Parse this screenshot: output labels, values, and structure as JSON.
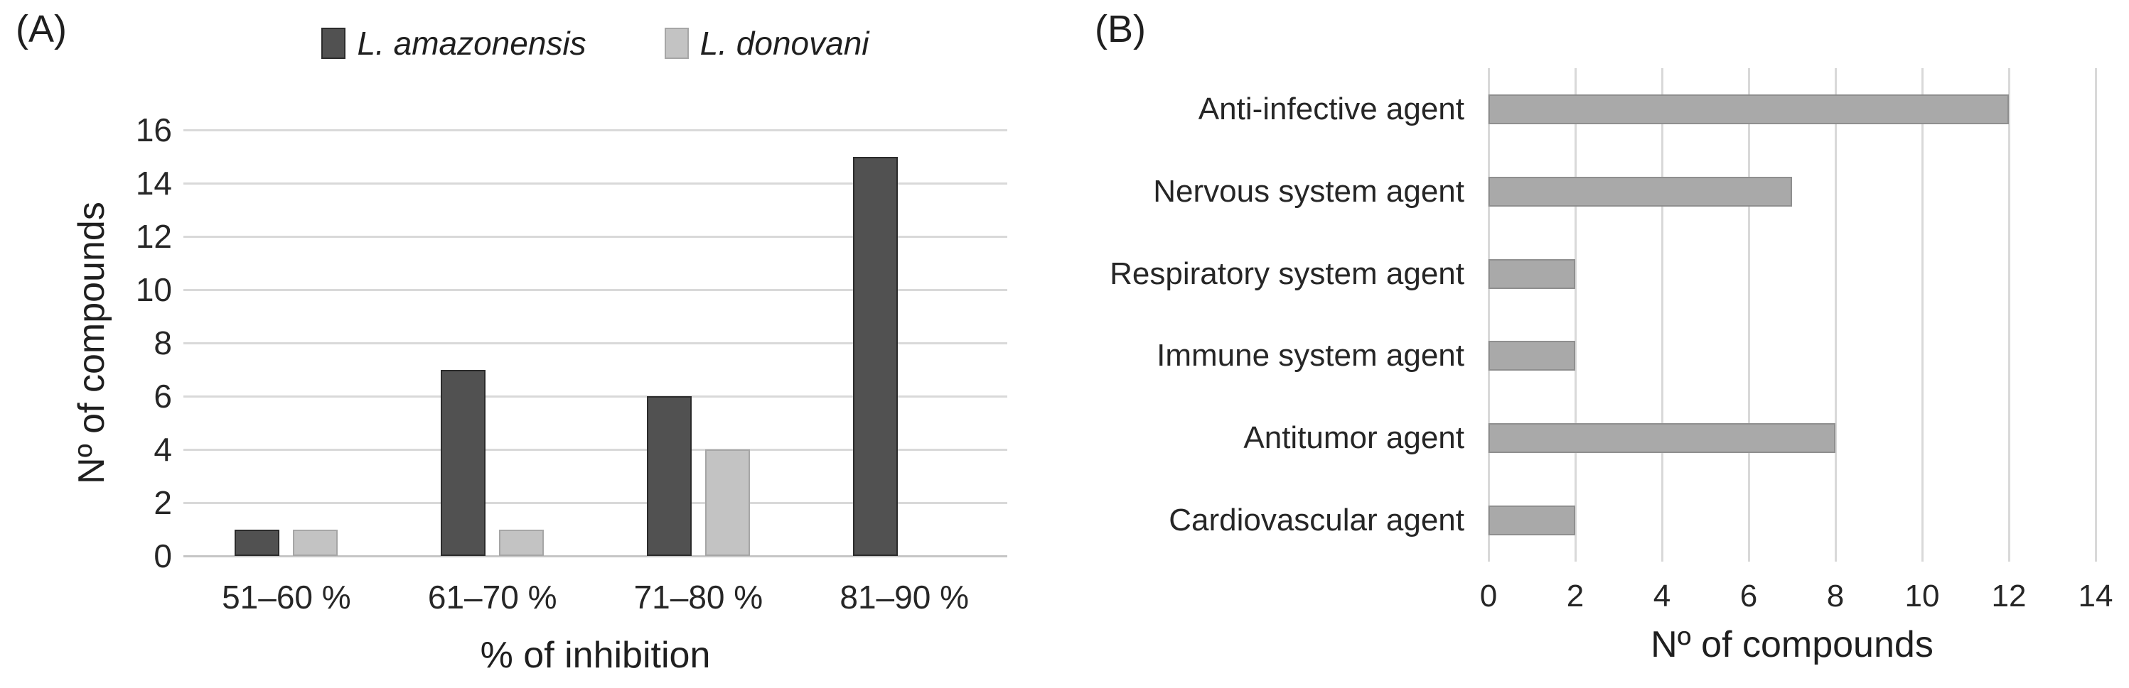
{
  "figure": {
    "background_color": "#ffffff",
    "text_color": "#262626",
    "gridline_color": "#d9d9d9",
    "axis_line_color": "#c6c6c6"
  },
  "chart_data": [
    {
      "id": "A",
      "panel_label": "(A)",
      "type": "bar",
      "orientation": "vertical",
      "categories": [
        "51–60 %",
        "61–70 %",
        "71–80 %",
        "81–90 %"
      ],
      "series": [
        {
          "name": "L. amazonensis",
          "values": [
            1,
            7,
            6,
            15
          ],
          "color": "#515151",
          "border": "#2b2b2b"
        },
        {
          "name": "L. donovani",
          "values": [
            1,
            1,
            4,
            0
          ],
          "color": "#c3c3c3",
          "border": "#a6a6a6"
        }
      ],
      "xlabel": "% of inhibition",
      "ylabel": "Nº of compounds",
      "ylim": [
        0,
        16
      ],
      "ytick_step": 2,
      "grid": true,
      "legend_position": "top"
    },
    {
      "id": "B",
      "panel_label": "(B)",
      "type": "bar",
      "orientation": "horizontal",
      "categories": [
        "Anti-infective agent",
        "Nervous system agent",
        "Respiratory system agent",
        "Immune system agent",
        "Antitumor agent",
        "Cardiovascular agent"
      ],
      "values": [
        12,
        7,
        2,
        2,
        8,
        2
      ],
      "color": "#a9a9a9",
      "border": "#8f8f8f",
      "xlabel": "Nº of compounds",
      "xlim": [
        0,
        14
      ],
      "xtick_step": 2,
      "grid": true
    }
  ]
}
